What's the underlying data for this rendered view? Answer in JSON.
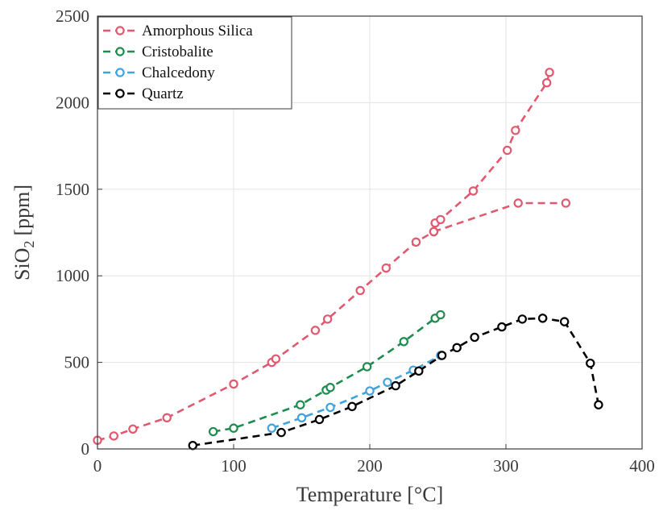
{
  "chart_data": {
    "type": "line",
    "xlabel": "Temperature [°C]",
    "ylabel_main": "SiO",
    "ylabel_sub": "2",
    "ylabel_unit": "[ppm]",
    "xlim": [
      0,
      400
    ],
    "ylim": [
      0,
      2500
    ],
    "xticks": [
      0,
      100,
      200,
      300,
      400
    ],
    "yticks": [
      0,
      500,
      1000,
      1500,
      2000,
      2500
    ],
    "grid": true,
    "legend_position": "top-left",
    "series": [
      {
        "name": "Amorphous Silica",
        "color": "#e0596f",
        "segments": [
          [
            [
              0,
              50
            ],
            [
              12,
              75
            ],
            [
              26,
              115
            ],
            [
              51,
              180
            ],
            [
              100,
              375
            ],
            [
              128,
              500
            ],
            [
              131,
              520
            ],
            [
              160,
              685
            ],
            [
              169,
              750
            ],
            [
              193,
              915
            ],
            [
              212,
              1045
            ],
            [
              234,
              1195
            ],
            [
              247,
              1255
            ],
            [
              248,
              1305
            ],
            [
              252,
              1325
            ],
            [
              276,
              1490
            ],
            [
              301,
              1725
            ],
            [
              307,
              1840
            ],
            [
              330,
              2115
            ],
            [
              332,
              2175
            ]
          ],
          [
            [
              247,
              1255
            ],
            [
              309,
              1420
            ],
            [
              344,
              1420
            ]
          ]
        ]
      },
      {
        "name": "Cristobalite",
        "color": "#1e8c4e",
        "segments": [
          [
            [
              85,
              100
            ],
            [
              100,
              120
            ],
            [
              149,
              255
            ],
            [
              168,
              340
            ],
            [
              171,
              355
            ],
            [
              198,
              475
            ],
            [
              225,
              620
            ],
            [
              248,
              755
            ],
            [
              252,
              775
            ]
          ]
        ]
      },
      {
        "name": "Chalcedony",
        "color": "#3fa3de",
        "segments": [
          [
            [
              128,
              120
            ],
            [
              150,
              180
            ],
            [
              171,
              240
            ],
            [
              200,
              335
            ],
            [
              213,
              385
            ],
            [
              232,
              455
            ],
            [
              252,
              540
            ]
          ]
        ]
      },
      {
        "name": "Quartz",
        "color": "#000000",
        "segments": [
          [
            [
              70,
              20
            ],
            [
              135,
              95
            ],
            [
              163,
              170
            ],
            [
              187,
              245
            ],
            [
              219,
              365
            ],
            [
              236,
              450
            ],
            [
              253,
              540
            ],
            [
              264,
              585
            ],
            [
              277,
              645
            ],
            [
              297,
              705
            ],
            [
              312,
              750
            ],
            [
              327,
              755
            ],
            [
              343,
              735
            ],
            [
              362,
              495
            ],
            [
              368,
              255
            ]
          ]
        ]
      }
    ]
  }
}
